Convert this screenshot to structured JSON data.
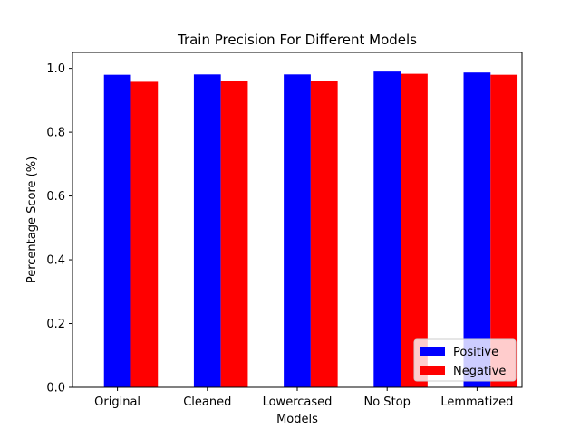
{
  "chart_data": {
    "type": "bar",
    "title": "Train Precision For Different Models",
    "xlabel": "Models",
    "ylabel": "Percentage Score (%)",
    "categories": [
      "Original",
      "Cleaned",
      "Lowercased",
      "No Stop",
      "Lemmatized"
    ],
    "series": [
      {
        "name": "Positive",
        "color": "#0000ff",
        "values": [
          0.98,
          0.981,
          0.981,
          0.99,
          0.987
        ]
      },
      {
        "name": "Negative",
        "color": "#ff0000",
        "values": [
          0.958,
          0.96,
          0.96,
          0.983,
          0.98
        ]
      }
    ],
    "ylim": [
      0,
      1.05
    ],
    "yticks": [
      0.0,
      0.2,
      0.4,
      0.6,
      0.8,
      1.0
    ],
    "ytick_labels": [
      "0.0",
      "0.2",
      "0.4",
      "0.6",
      "0.8",
      "1.0"
    ],
    "grid": false,
    "legend_position": "bottom-right"
  }
}
